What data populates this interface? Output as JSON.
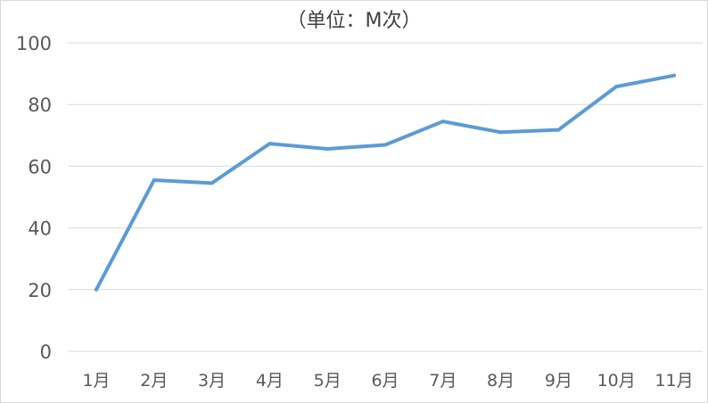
{
  "chart_data": {
    "type": "line",
    "title": "（单位：M次）",
    "categories": [
      "1月",
      "2月",
      "3月",
      "4月",
      "5月",
      "6月",
      "7月",
      "8月",
      "9月",
      "10月",
      "11月"
    ],
    "series": [
      {
        "values": [
          20,
          55.5,
          54.5,
          67.3,
          65.6,
          66.9,
          74.5,
          71,
          71.8,
          85.8,
          89.4
        ],
        "color": "#5b9bd5"
      }
    ],
    "ylim": [
      0,
      100
    ],
    "yticks": [
      0,
      20,
      40,
      60,
      80,
      100
    ],
    "grid": true,
    "legend": "none"
  }
}
